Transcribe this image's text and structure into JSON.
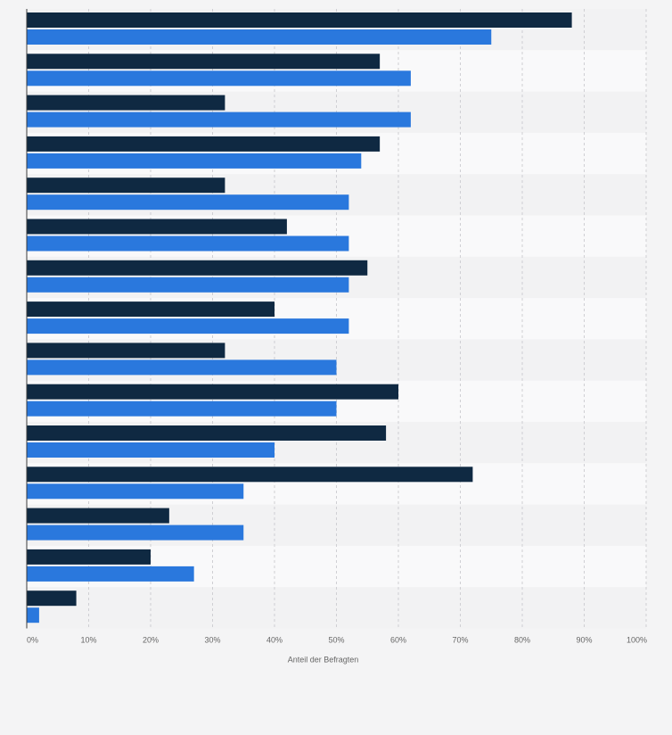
{
  "chart_data": {
    "type": "bar",
    "orientation": "horizontal",
    "xlabel": "Anteil der Befragten",
    "xlim": [
      0,
      100
    ],
    "x_ticks": [
      "0%",
      "10%",
      "20%",
      "30%",
      "40%",
      "50%",
      "60%",
      "70%",
      "80%",
      "90%",
      "100%"
    ],
    "grid": true,
    "categories": [
      "",
      "",
      "",
      "",
      "",
      "",
      "",
      "",
      "",
      "",
      "",
      "",
      "",
      "",
      ""
    ],
    "series": [
      {
        "color": "#0f2942",
        "values": [
          88,
          57,
          32,
          57,
          32,
          42,
          55,
          40,
          32,
          60,
          58,
          72,
          23,
          20,
          8
        ]
      },
      {
        "color": "#2a78dd",
        "values": [
          75,
          62,
          62,
          54,
          52,
          52,
          52,
          52,
          50,
          50,
          40,
          35,
          35,
          27,
          2
        ]
      }
    ],
    "colors": {
      "background": "#f4f4f5",
      "band_light": "#f9f9fa",
      "band_dark": "#f2f2f3",
      "gridline": "#cfcfd3",
      "axis": "#3a3a3a",
      "tick_text": "#666666"
    }
  }
}
